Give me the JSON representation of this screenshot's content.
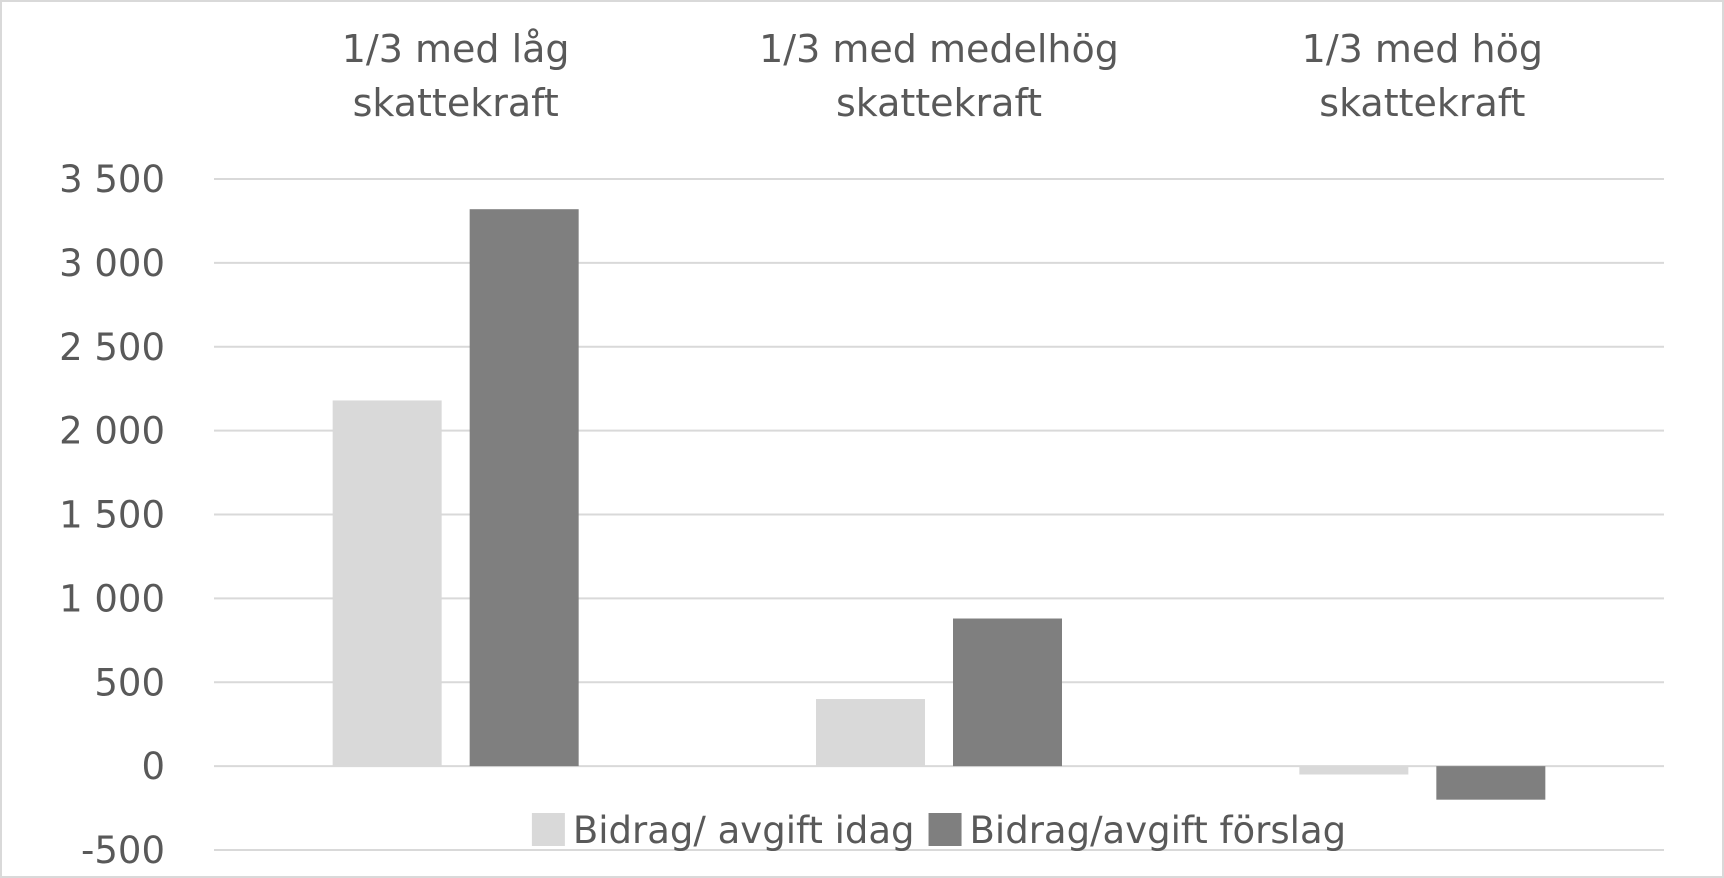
{
  "chart_data": {
    "type": "bar",
    "categories": [
      "1/3 med låg skattekraft",
      "1/3 med medelhög skattekraft",
      "1/3 med hög skattekraft"
    ],
    "series": [
      {
        "name": "Bidrag/ avgift idag",
        "color": "#d9d9d9",
        "values": [
          2180,
          400,
          -50
        ]
      },
      {
        "name": "Bidrag/avgift förslag",
        "color": "#7f7f7f",
        "values": [
          3320,
          880,
          -200
        ]
      }
    ],
    "ylim": [
      -500,
      3500
    ],
    "yticks": [
      -500,
      0,
      500,
      {
        "value": 1000,
        "label": "1 000"
      },
      {
        "value": 1500,
        "label": "1 500"
      },
      {
        "value": 2000,
        "label": "2 000"
      },
      {
        "value": 2500,
        "label": "2 500"
      },
      {
        "value": 3000,
        "label": "3 000"
      },
      {
        "value": 3500,
        "label": "3 500"
      }
    ],
    "grid": true,
    "legend": "bottom"
  }
}
